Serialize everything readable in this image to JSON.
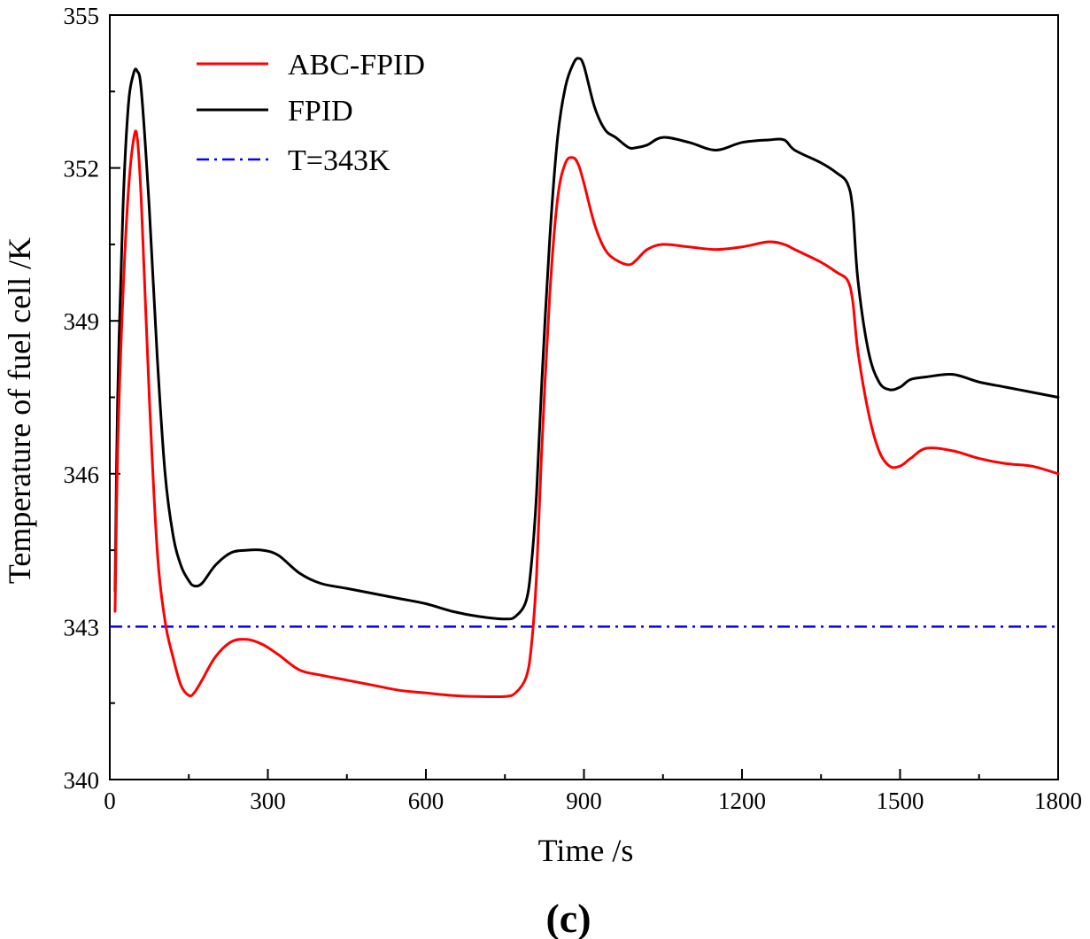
{
  "chart_data": {
    "type": "line",
    "xlabel": "Time /s",
    "ylabel": "Temperature of fuel cell /K",
    "xlim": [
      0,
      1800
    ],
    "ylim": [
      340,
      355
    ],
    "xticks": [
      0,
      300,
      600,
      900,
      1200,
      1500,
      1800
    ],
    "xtick_labels": [
      "0",
      "300",
      "600",
      "900",
      "1200",
      "1500",
      "1800"
    ],
    "yticks": [
      340,
      343,
      346,
      349,
      352,
      355
    ],
    "ytick_labels": [
      "340",
      "343",
      "346",
      "349",
      "352",
      "355"
    ],
    "ytick_minor": [
      341.5,
      344.5,
      347.5,
      350.5,
      353.5
    ],
    "grid": false,
    "legend_position": "top-left",
    "series": [
      {
        "name": "ABC-FPID",
        "color": "#ff0000",
        "style": "solid",
        "x": [
          10,
          15,
          25,
          35,
          45,
          52,
          60,
          75,
          90,
          105,
          120,
          135,
          150,
          160,
          175,
          200,
          230,
          260,
          290,
          320,
          360,
          400,
          450,
          500,
          550,
          600,
          650,
          700,
          750,
          770,
          790,
          800,
          810,
          820,
          835,
          850,
          865,
          880,
          890,
          900,
          920,
          940,
          960,
          985,
          1000,
          1020,
          1050,
          1100,
          1150,
          1200,
          1250,
          1280,
          1300,
          1350,
          1380,
          1400,
          1410,
          1420,
          1440,
          1460,
          1480,
          1500,
          1520,
          1550,
          1600,
          1650,
          1700,
          1750,
          1800
        ],
        "values": [
          343.3,
          346.5,
          349.5,
          351.5,
          352.55,
          352.6,
          351.3,
          347.5,
          344.5,
          343.1,
          342.4,
          341.85,
          341.65,
          341.7,
          341.95,
          342.4,
          342.7,
          342.75,
          342.65,
          342.45,
          342.15,
          342.05,
          341.95,
          341.85,
          341.75,
          341.7,
          341.65,
          341.63,
          341.63,
          341.7,
          342.0,
          342.6,
          344.0,
          346.5,
          349.5,
          351.4,
          352.1,
          352.2,
          352.05,
          351.7,
          350.9,
          350.4,
          350.2,
          350.1,
          350.2,
          350.4,
          350.5,
          350.45,
          350.4,
          350.45,
          350.55,
          350.5,
          350.4,
          350.15,
          349.95,
          349.8,
          349.4,
          348.4,
          347.2,
          346.45,
          346.15,
          346.15,
          346.3,
          346.5,
          346.45,
          346.3,
          346.2,
          346.15,
          346.0
        ]
      },
      {
        "name": "FPID",
        "color": "#000000",
        "style": "solid",
        "x": [
          10,
          15,
          25,
          35,
          45,
          52,
          60,
          75,
          90,
          105,
          120,
          135,
          150,
          160,
          175,
          200,
          230,
          260,
          290,
          320,
          360,
          400,
          450,
          500,
          550,
          600,
          650,
          700,
          750,
          770,
          790,
          800,
          810,
          820,
          835,
          850,
          865,
          880,
          890,
          900,
          920,
          940,
          960,
          985,
          1000,
          1020,
          1050,
          1100,
          1150,
          1200,
          1250,
          1280,
          1300,
          1350,
          1380,
          1400,
          1410,
          1420,
          1440,
          1460,
          1480,
          1500,
          1520,
          1550,
          1600,
          1650,
          1700,
          1750,
          1800
        ],
        "values": [
          343.7,
          347.5,
          351.2,
          353.2,
          353.85,
          353.9,
          353.5,
          351.2,
          348.3,
          346.0,
          344.8,
          344.2,
          343.9,
          343.8,
          343.85,
          344.2,
          344.45,
          344.5,
          344.5,
          344.4,
          344.05,
          343.85,
          343.75,
          343.65,
          343.55,
          343.45,
          343.3,
          343.2,
          343.15,
          343.2,
          343.5,
          344.2,
          345.6,
          347.8,
          350.6,
          352.6,
          353.6,
          354.05,
          354.15,
          354.0,
          353.2,
          352.75,
          352.6,
          352.4,
          352.4,
          352.45,
          352.6,
          352.5,
          352.35,
          352.5,
          352.55,
          352.55,
          352.35,
          352.1,
          351.9,
          351.7,
          351.2,
          349.8,
          348.4,
          347.8,
          347.65,
          347.7,
          347.85,
          347.9,
          347.95,
          347.8,
          347.7,
          347.6,
          347.5
        ]
      },
      {
        "name": "T=343K",
        "color": "#0000ff",
        "style": "dash-dot",
        "x": [
          0,
          1800
        ],
        "values": [
          343,
          343
        ]
      }
    ]
  },
  "caption": "(c)"
}
